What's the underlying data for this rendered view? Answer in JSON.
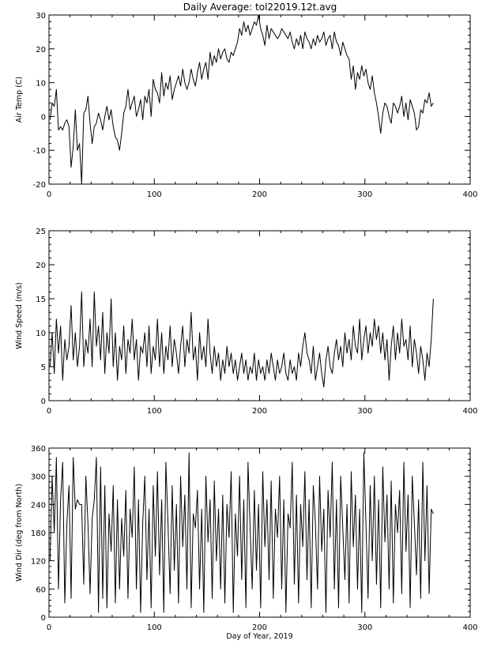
{
  "figure": {
    "title": "Daily Average: tol22019.12t.avg",
    "line_color": "#000000",
    "background_color": "#ffffff"
  },
  "chart_data": [
    {
      "type": "line",
      "title": "Daily Average: tol22019.12t.avg",
      "xlabel": "",
      "ylabel": "Air Temp (C)",
      "xlim": [
        0,
        400
      ],
      "ylim": [
        -20,
        30
      ],
      "xticks": [
        0,
        100,
        200,
        300,
        400
      ],
      "yticks": [
        -20,
        -10,
        0,
        10,
        20,
        30
      ],
      "xtick_labels": [
        "0",
        "100",
        "200",
        "300",
        "400"
      ],
      "ytick_labels": [
        "-20",
        "-10",
        "0",
        "10",
        "20",
        "30"
      ],
      "grid": false,
      "x": [
        1,
        3,
        5,
        7,
        9,
        11,
        13,
        15,
        17,
        19,
        21,
        23,
        25,
        27,
        29,
        31,
        33,
        35,
        37,
        39,
        41,
        43,
        45,
        47,
        49,
        51,
        53,
        55,
        57,
        59,
        61,
        63,
        65,
        67,
        69,
        71,
        73,
        75,
        77,
        79,
        81,
        83,
        85,
        87,
        89,
        91,
        93,
        95,
        97,
        99,
        101,
        103,
        105,
        107,
        109,
        111,
        113,
        115,
        117,
        119,
        121,
        123,
        125,
        127,
        129,
        131,
        133,
        135,
        137,
        139,
        141,
        143,
        145,
        147,
        149,
        151,
        153,
        155,
        157,
        159,
        161,
        163,
        165,
        167,
        169,
        171,
        173,
        175,
        177,
        179,
        181,
        183,
        185,
        187,
        189,
        191,
        193,
        195,
        197,
        199,
        201,
        203,
        205,
        207,
        209,
        211,
        213,
        215,
        217,
        219,
        221,
        223,
        225,
        227,
        229,
        231,
        233,
        235,
        237,
        239,
        241,
        243,
        245,
        247,
        249,
        251,
        253,
        255,
        257,
        259,
        261,
        263,
        265,
        267,
        269,
        271,
        273,
        275,
        277,
        279,
        281,
        283,
        285,
        287,
        289,
        291,
        293,
        295,
        297,
        299,
        301,
        303,
        305,
        307,
        309,
        311,
        313,
        315,
        317,
        319,
        321,
        323,
        325,
        327,
        329,
        331,
        333,
        335,
        337,
        339,
        341,
        343,
        345,
        347,
        349,
        351,
        353,
        355,
        357,
        359,
        361,
        363,
        365
      ],
      "y": [
        -1,
        4,
        3,
        8,
        -4,
        -3,
        -4,
        -2,
        -1,
        -3,
        -15,
        -9,
        2,
        -10,
        -8,
        -20,
        1,
        2,
        6,
        -2,
        -8,
        -3,
        -2,
        1,
        -1,
        -4,
        0,
        3,
        -1,
        2,
        -3,
        -6,
        -7,
        -10,
        -5,
        1,
        3,
        8,
        2,
        4,
        6,
        0,
        2,
        5,
        -1,
        6,
        4,
        8,
        0,
        11,
        8,
        7,
        4,
        13,
        6,
        10,
        8,
        12,
        5,
        8,
        10,
        12,
        9,
        14,
        10,
        8,
        10,
        14,
        11,
        9,
        13,
        16,
        11,
        14,
        16,
        11,
        19,
        15,
        18,
        16,
        20,
        17,
        19,
        20,
        17,
        16,
        19,
        18,
        20,
        22,
        26,
        24,
        28,
        25,
        27,
        24,
        26,
        28,
        27,
        30,
        26,
        24,
        21,
        27,
        23,
        26,
        25,
        24,
        23,
        24,
        26,
        25,
        24,
        23,
        25,
        22,
        20,
        23,
        21,
        24,
        20,
        25,
        23,
        22,
        20,
        23,
        21,
        24,
        22,
        23,
        25,
        21,
        23,
        24,
        20,
        25,
        22,
        21,
        18,
        22,
        20,
        18,
        17,
        11,
        15,
        8,
        13,
        11,
        15,
        12,
        14,
        10,
        8,
        12,
        7,
        4,
        0,
        -5,
        1,
        4,
        3,
        0,
        -2,
        4,
        3,
        1,
        3,
        6,
        0,
        4,
        -1,
        5,
        3,
        1,
        -4,
        -3,
        2,
        1,
        5,
        4,
        7,
        3,
        4
      ]
    },
    {
      "type": "line",
      "xlabel": "",
      "ylabel": "Wind Speed (m/s)",
      "xlim": [
        0,
        400
      ],
      "ylim": [
        0,
        25
      ],
      "xticks": [
        0,
        100,
        200,
        300,
        400
      ],
      "yticks": [
        0,
        5,
        10,
        15,
        20,
        25
      ],
      "xtick_labels": [
        "0",
        "100",
        "200",
        "300",
        "400"
      ],
      "ytick_labels": [
        "0",
        "5",
        "10",
        "15",
        "20",
        "25"
      ],
      "grid": false,
      "x": [
        1,
        3,
        5,
        7,
        9,
        11,
        13,
        15,
        17,
        19,
        21,
        23,
        25,
        27,
        29,
        31,
        33,
        35,
        37,
        39,
        41,
        43,
        45,
        47,
        49,
        51,
        53,
        55,
        57,
        59,
        61,
        63,
        65,
        67,
        69,
        71,
        73,
        75,
        77,
        79,
        81,
        83,
        85,
        87,
        89,
        91,
        93,
        95,
        97,
        99,
        101,
        103,
        105,
        107,
        109,
        111,
        113,
        115,
        117,
        119,
        121,
        123,
        125,
        127,
        129,
        131,
        133,
        135,
        137,
        139,
        141,
        143,
        145,
        147,
        149,
        151,
        153,
        155,
        157,
        159,
        161,
        163,
        165,
        167,
        169,
        171,
        173,
        175,
        177,
        179,
        181,
        183,
        185,
        187,
        189,
        191,
        193,
        195,
        197,
        199,
        201,
        203,
        205,
        207,
        209,
        211,
        213,
        215,
        217,
        219,
        221,
        223,
        225,
        227,
        229,
        231,
        233,
        235,
        237,
        239,
        241,
        243,
        245,
        247,
        249,
        251,
        253,
        255,
        257,
        259,
        261,
        263,
        265,
        267,
        269,
        271,
        273,
        275,
        277,
        279,
        281,
        283,
        285,
        287,
        289,
        291,
        293,
        295,
        297,
        299,
        301,
        303,
        305,
        307,
        309,
        311,
        313,
        315,
        317,
        319,
        321,
        323,
        325,
        327,
        329,
        331,
        333,
        335,
        337,
        339,
        341,
        343,
        345,
        347,
        349,
        351,
        353,
        355,
        357,
        359,
        361,
        363,
        365
      ],
      "y": [
        5,
        10,
        4,
        12,
        7,
        11,
        3,
        9,
        6,
        8,
        14,
        6,
        10,
        5,
        8,
        16,
        5,
        9,
        7,
        12,
        5,
        16,
        8,
        11,
        6,
        13,
        4,
        10,
        7,
        15,
        5,
        10,
        3,
        8,
        6,
        11,
        4,
        9,
        7,
        12,
        6,
        9,
        3,
        8,
        7,
        10,
        5,
        11,
        4,
        8,
        6,
        12,
        5,
        10,
        4,
        8,
        6,
        11,
        5,
        9,
        7,
        4,
        8,
        11,
        5,
        9,
        7,
        13,
        6,
        8,
        3,
        10,
        6,
        8,
        5,
        12,
        7,
        4,
        8,
        5,
        7,
        3,
        6,
        4,
        8,
        5,
        7,
        4,
        6,
        3,
        5,
        7,
        4,
        6,
        3,
        5,
        4,
        7,
        3,
        6,
        4,
        5,
        3,
        6,
        4,
        7,
        5,
        3,
        6,
        4,
        5,
        7,
        4,
        3,
        6,
        4,
        5,
        3,
        7,
        5,
        8,
        10,
        7,
        6,
        4,
        8,
        3,
        5,
        7,
        4,
        2,
        6,
        8,
        5,
        4,
        7,
        9,
        6,
        8,
        5,
        10,
        7,
        9,
        6,
        11,
        8,
        7,
        12,
        6,
        9,
        11,
        7,
        10,
        8,
        12,
        9,
        11,
        7,
        10,
        6,
        9,
        3,
        8,
        11,
        6,
        10,
        7,
        12,
        8,
        9,
        6,
        11,
        5,
        9,
        7,
        4,
        8,
        6,
        3,
        7,
        5,
        9,
        15
      ]
    },
    {
      "type": "line",
      "xlabel": "Day of Year, 2019",
      "ylabel": "Wind Dir (deg from North)",
      "xlim": [
        0,
        400
      ],
      "ylim": [
        0,
        360
      ],
      "xticks": [
        0,
        100,
        200,
        300,
        400
      ],
      "yticks": [
        0,
        60,
        120,
        180,
        240,
        300,
        360
      ],
      "xtick_labels": [
        "0",
        "100",
        "200",
        "300",
        "400"
      ],
      "ytick_labels": [
        "0",
        "60",
        "120",
        "180",
        "240",
        "300",
        "360"
      ],
      "grid": false,
      "x": [
        1,
        3,
        5,
        7,
        9,
        11,
        13,
        15,
        17,
        19,
        21,
        23,
        25,
        27,
        29,
        31,
        33,
        35,
        37,
        39,
        41,
        43,
        45,
        47,
        49,
        51,
        53,
        55,
        57,
        59,
        61,
        63,
        65,
        67,
        69,
        71,
        73,
        75,
        77,
        79,
        81,
        83,
        85,
        87,
        89,
        91,
        93,
        95,
        97,
        99,
        101,
        103,
        105,
        107,
        109,
        111,
        113,
        115,
        117,
        119,
        121,
        123,
        125,
        127,
        129,
        131,
        133,
        135,
        137,
        139,
        141,
        143,
        145,
        147,
        149,
        151,
        153,
        155,
        157,
        159,
        161,
        163,
        165,
        167,
        169,
        171,
        173,
        175,
        177,
        179,
        181,
        183,
        185,
        187,
        189,
        191,
        193,
        195,
        197,
        199,
        201,
        203,
        205,
        207,
        209,
        211,
        213,
        215,
        217,
        219,
        221,
        223,
        225,
        227,
        229,
        231,
        233,
        235,
        237,
        239,
        241,
        243,
        245,
        247,
        249,
        251,
        253,
        255,
        257,
        259,
        261,
        263,
        265,
        267,
        269,
        271,
        273,
        275,
        277,
        279,
        281,
        283,
        285,
        287,
        289,
        291,
        293,
        295,
        297,
        299,
        301,
        303,
        305,
        307,
        309,
        311,
        313,
        315,
        317,
        319,
        321,
        323,
        325,
        327,
        329,
        331,
        333,
        335,
        337,
        339,
        341,
        343,
        345,
        347,
        349,
        351,
        353,
        355,
        357,
        359,
        361,
        363,
        365
      ],
      "y": [
        120,
        300,
        180,
        340,
        60,
        250,
        330,
        30,
        200,
        280,
        40,
        340,
        230,
        250,
        240,
        240,
        70,
        300,
        200,
        50,
        210,
        250,
        340,
        10,
        320,
        40,
        280,
        20,
        220,
        140,
        280,
        30,
        250,
        60,
        210,
        130,
        270,
        40,
        230,
        170,
        320,
        60,
        250,
        10,
        200,
        300,
        80,
        230,
        20,
        280,
        130,
        310,
        90,
        250,
        10,
        330,
        200,
        50,
        280,
        100,
        240,
        30,
        300,
        150,
        260,
        60,
        350,
        20,
        220,
        190,
        270,
        60,
        230,
        10,
        300,
        160,
        250,
        40,
        290,
        120,
        230,
        60,
        260,
        30,
        240,
        170,
        310,
        10,
        220,
        130,
        300,
        80,
        250,
        20,
        330,
        190,
        60,
        270,
        100,
        240,
        20,
        310,
        150,
        250,
        80,
        290,
        40,
        230,
        170,
        300,
        60,
        250,
        10,
        220,
        190,
        330,
        70,
        260,
        30,
        240,
        150,
        310,
        80,
        250,
        20,
        280,
        200,
        60,
        300,
        140,
        230,
        10,
        270,
        170,
        330,
        60,
        250,
        20,
        300,
        190,
        80,
        240,
        30,
        310,
        150,
        260,
        60,
        230,
        10,
        350,
        200,
        40,
        280,
        120,
        300,
        70,
        250,
        20,
        320,
        160,
        260,
        60,
        290,
        30,
        240,
        180,
        270,
        50,
        330,
        140,
        260,
        20,
        300,
        200,
        90,
        250,
        40,
        330,
        120,
        280,
        50,
        230,
        220
      ]
    }
  ]
}
